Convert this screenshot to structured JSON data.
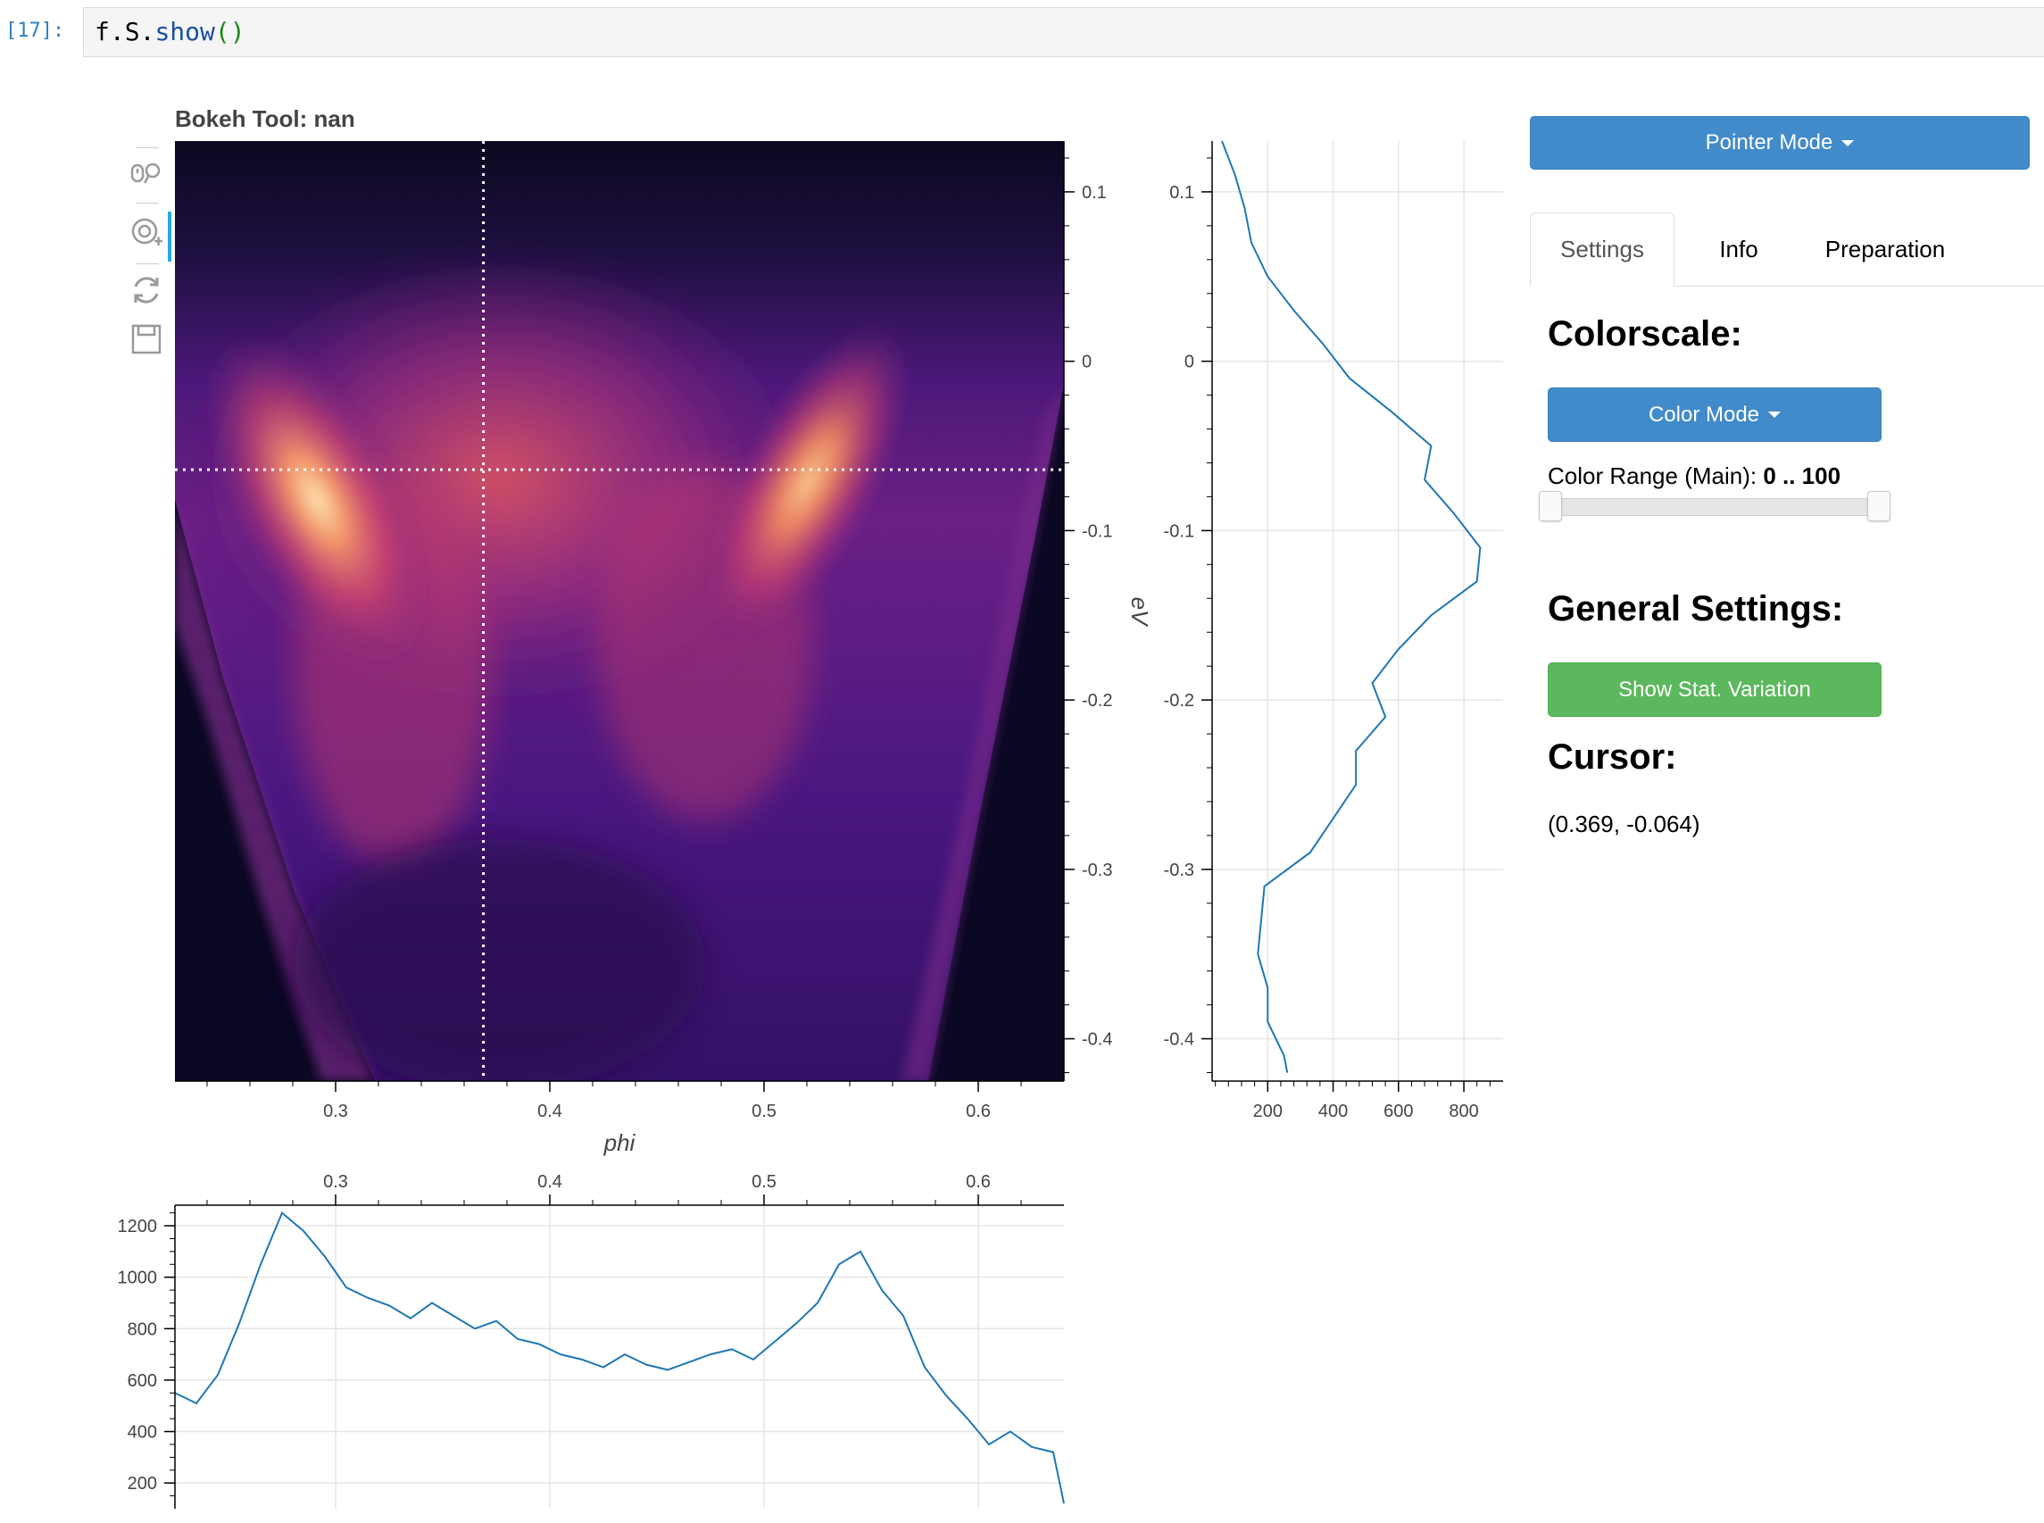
{
  "cell": {
    "prompt": "[17]:",
    "code_object": "f.S.",
    "code_fn": "show",
    "code_parens": "()"
  },
  "plot": {
    "tool_title": "Bokeh Tool: nan",
    "tools": [
      "pan-icon",
      "wheel-zoom-icon",
      "reset-icon",
      "save-icon"
    ],
    "xlabel": "phi",
    "ylabel": "eV",
    "xticks": [
      "0.3",
      "0.4",
      "0.5",
      "0.6"
    ],
    "yticks": [
      "0.1",
      "0",
      "-0.1",
      "-0.2",
      "-0.3",
      "-0.4"
    ],
    "crosshair": {
      "x": 0.369,
      "y": -0.064
    },
    "colormap": "magma"
  },
  "right_profile": {
    "xticks": [
      "200",
      "400",
      "600",
      "800"
    ],
    "yticks": [
      "0.1",
      "0",
      "-0.1",
      "-0.2",
      "-0.3",
      "-0.4"
    ],
    "line_color": "#1f77b4"
  },
  "bottom_profile": {
    "xticks": [
      "0.3",
      "0.4",
      "0.5",
      "0.6"
    ],
    "yticks": [
      "1200",
      "1000",
      "800",
      "600",
      "400",
      "200"
    ],
    "line_color": "#1f77b4"
  },
  "panel": {
    "pointer_mode": "Pointer Mode",
    "tabs": [
      "Settings",
      "Info",
      "Preparation"
    ],
    "active_tab": "Settings",
    "colorscale_heading": "Colorscale:",
    "color_mode": "Color Mode",
    "color_range_label": "Color Range (Main):",
    "color_range_value": "0 .. 100",
    "general_heading": "General Settings:",
    "stat_button": "Show Stat. Variation",
    "cursor_heading": "Cursor:",
    "cursor_value": "(0.369, -0.064)"
  },
  "colors": {
    "primary": "#428bca",
    "success": "#5cb85c",
    "prompt": "#307fc1"
  },
  "chart_data": [
    {
      "type": "heatmap",
      "title": "Bokeh Tool: nan",
      "xlabel": "phi",
      "ylabel": "eV",
      "xlim": [
        0.225,
        0.64
      ],
      "ylim": [
        -0.425,
        0.13
      ],
      "colormap": "magma"
    },
    {
      "type": "line",
      "orientation": "vertical-profile",
      "xlabel": "",
      "ylabel": "",
      "xlim": [
        30,
        920
      ],
      "ylim": [
        -0.425,
        0.13
      ],
      "y": [
        0.13,
        0.11,
        0.09,
        0.07,
        0.05,
        0.03,
        0.01,
        -0.01,
        -0.03,
        -0.05,
        -0.07,
        -0.09,
        -0.11,
        -0.13,
        -0.15,
        -0.17,
        -0.19,
        -0.21,
        -0.23,
        -0.25,
        -0.27,
        -0.29,
        -0.31,
        -0.33,
        -0.35,
        -0.37,
        -0.39,
        -0.41,
        -0.42
      ],
      "x": [
        60,
        100,
        130,
        150,
        200,
        280,
        370,
        450,
        580,
        700,
        680,
        770,
        850,
        840,
        700,
        600,
        520,
        560,
        470,
        470,
        400,
        330,
        190,
        180,
        170,
        200,
        200,
        250,
        260
      ]
    },
    {
      "type": "line",
      "orientation": "horizontal-profile",
      "xlabel": "",
      "ylabel": "",
      "xlim": [
        0.225,
        0.64
      ],
      "ylim": [
        100,
        1280
      ],
      "x": [
        0.225,
        0.235,
        0.245,
        0.255,
        0.265,
        0.275,
        0.285,
        0.295,
        0.305,
        0.315,
        0.325,
        0.335,
        0.345,
        0.355,
        0.365,
        0.375,
        0.385,
        0.395,
        0.405,
        0.415,
        0.425,
        0.435,
        0.445,
        0.455,
        0.465,
        0.475,
        0.485,
        0.495,
        0.505,
        0.515,
        0.525,
        0.535,
        0.545,
        0.555,
        0.565,
        0.575,
        0.585,
        0.595,
        0.605,
        0.615,
        0.625,
        0.635,
        0.64
      ],
      "y": [
        550,
        510,
        620,
        820,
        1050,
        1250,
        1180,
        1080,
        960,
        920,
        890,
        840,
        900,
        850,
        800,
        830,
        760,
        740,
        700,
        680,
        650,
        700,
        660,
        640,
        670,
        700,
        720,
        680,
        750,
        820,
        900,
        1050,
        1100,
        950,
        850,
        650,
        540,
        450,
        350,
        400,
        340,
        320,
        120
      ]
    }
  ]
}
